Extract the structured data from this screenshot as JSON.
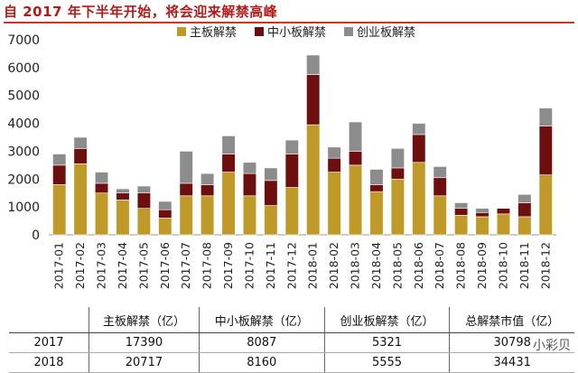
{
  "title": "自 2017 年下半年开始，将会迎来解禁高峰",
  "chart_data": {
    "type": "bar",
    "stacked": true,
    "categories": [
      "2017-01",
      "2017-02",
      "2017-03",
      "2017-04",
      "2017-05",
      "2017-06",
      "2017-07",
      "2017-08",
      "2017-09",
      "2017-10",
      "2017-11",
      "2017-12",
      "2018-01",
      "2018-02",
      "2018-03",
      "2018-04",
      "2018-05",
      "2018-06",
      "2018-07",
      "2018-08",
      "2018-09",
      "2018-10",
      "2018-11",
      "2018-12"
    ],
    "series": [
      {
        "name": "主板解禁",
        "color": "#c09a28",
        "values": [
          1800,
          2550,
          1500,
          1250,
          950,
          600,
          1400,
          1400,
          2250,
          1400,
          1050,
          1700,
          3950,
          2250,
          2500,
          1550,
          2000,
          2600,
          1400,
          700,
          650,
          750,
          650,
          2150
        ]
      },
      {
        "name": "中小板解禁",
        "color": "#6e0f0f",
        "values": [
          700,
          550,
          350,
          250,
          550,
          300,
          450,
          400,
          650,
          800,
          900,
          1200,
          1800,
          500,
          500,
          250,
          400,
          1000,
          650,
          250,
          150,
          200,
          500,
          1750
        ]
      },
      {
        "name": "创业板解禁",
        "color": "#8c8c8c",
        "values": [
          400,
          400,
          400,
          150,
          250,
          300,
          1150,
          400,
          650,
          400,
          450,
          500,
          700,
          400,
          1050,
          550,
          700,
          400,
          400,
          200,
          150,
          0,
          300,
          650
        ]
      }
    ],
    "y_ticks": [
      "0",
      "1000",
      "2000",
      "3000",
      "4000",
      "5000",
      "6000",
      "7000"
    ],
    "ylim": [
      0,
      7000
    ],
    "legend_position": "top"
  },
  "table": {
    "headers": [
      "",
      "主板解禁（亿）",
      "中小板解禁（亿）",
      "创业板解禁（亿）",
      "总解禁市值（亿）"
    ],
    "rows": [
      [
        "2017",
        "17390",
        "8087",
        "5321",
        "30798"
      ],
      [
        "2018",
        "20717",
        "8160",
        "5555",
        "34431"
      ]
    ]
  },
  "watermark": "小彩贝"
}
